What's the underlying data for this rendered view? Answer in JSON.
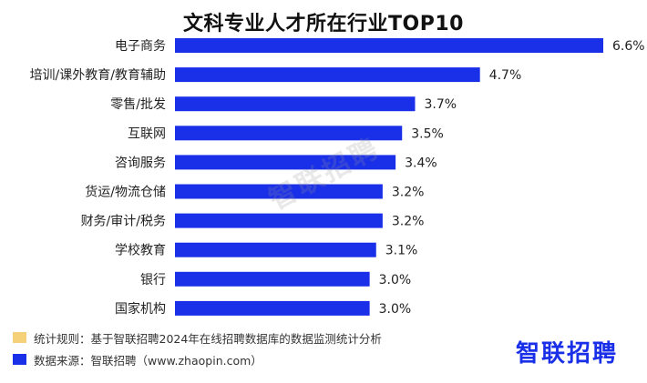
{
  "title": "文科专业人才所在行业TOP10",
  "watermark": "智联招聘",
  "logo": "智联招聘",
  "legend": [
    {
      "color": "#f5d27a",
      "text": "统计规则：基于智联招聘2024年在线招聘数据库的数据监测统计分析"
    },
    {
      "color": "#1a2fe8",
      "text": "数据来源：智联招聘（www.zhaopin.com）"
    }
  ],
  "colors": {
    "bar": "#1a2fe8",
    "brand": "#1a2fe8"
  },
  "chart_data": {
    "type": "bar",
    "orientation": "horizontal",
    "title": "文科专业人才所在行业TOP10",
    "categories": [
      "电子商务",
      "培训/课外教育/教育辅助",
      "零售/批发",
      "互联网",
      "咨询服务",
      "货运/物流仓储",
      "财务/审计/税务",
      "学校教育",
      "银行",
      "国家机构"
    ],
    "values": [
      6.6,
      4.7,
      3.7,
      3.5,
      3.4,
      3.2,
      3.2,
      3.1,
      3.0,
      3.0
    ],
    "value_labels": [
      "6.6%",
      "4.7%",
      "3.7%",
      "3.5%",
      "3.4%",
      "3.2%",
      "3.2%",
      "3.1%",
      "3.0%",
      "3.0%"
    ],
    "unit": "%",
    "xlabel": "",
    "ylabel": "",
    "grid": false
  }
}
